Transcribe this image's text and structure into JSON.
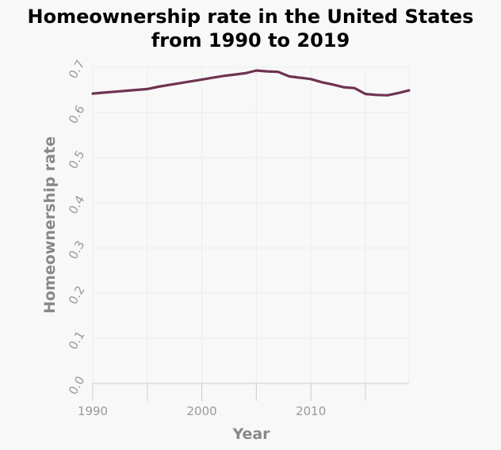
{
  "chart_data": {
    "type": "line",
    "title_lines": [
      "Homeownership rate in the United States",
      "from 1990 to 2019"
    ],
    "xlabel": "Year",
    "ylabel": "Homeownership rate",
    "xlim": [
      1990,
      2019
    ],
    "ylim": [
      0,
      0.7
    ],
    "x_ticks": [
      1990,
      2000,
      2010
    ],
    "y_ticks": [
      "0.0",
      "0.1",
      "0.2",
      "0.3",
      "0.4",
      "0.5",
      "0.6",
      "0.7"
    ],
    "grid": true,
    "colors": {
      "line": "#6e3350",
      "grid": "#ececec",
      "axis": "#cccccc",
      "background": "#f8f8f8"
    },
    "series": [
      {
        "x": [
          1990,
          1991,
          1992,
          1993,
          1994,
          1995,
          1996,
          1997,
          1998,
          1999,
          2000,
          2001,
          2002,
          2003,
          2004,
          2005,
          2006,
          2007,
          2008,
          2009,
          2010,
          2011,
          2012,
          2013,
          2014,
          2015,
          2016,
          2017,
          2018,
          2019
        ],
        "y": [
          0.642,
          0.644,
          0.646,
          0.648,
          0.65,
          0.652,
          0.657,
          0.661,
          0.665,
          0.669,
          0.673,
          0.677,
          0.681,
          0.684,
          0.687,
          0.693,
          0.691,
          0.69,
          0.68,
          0.677,
          0.674,
          0.667,
          0.662,
          0.656,
          0.654,
          0.641,
          0.639,
          0.638,
          0.643,
          0.649
        ]
      }
    ]
  }
}
